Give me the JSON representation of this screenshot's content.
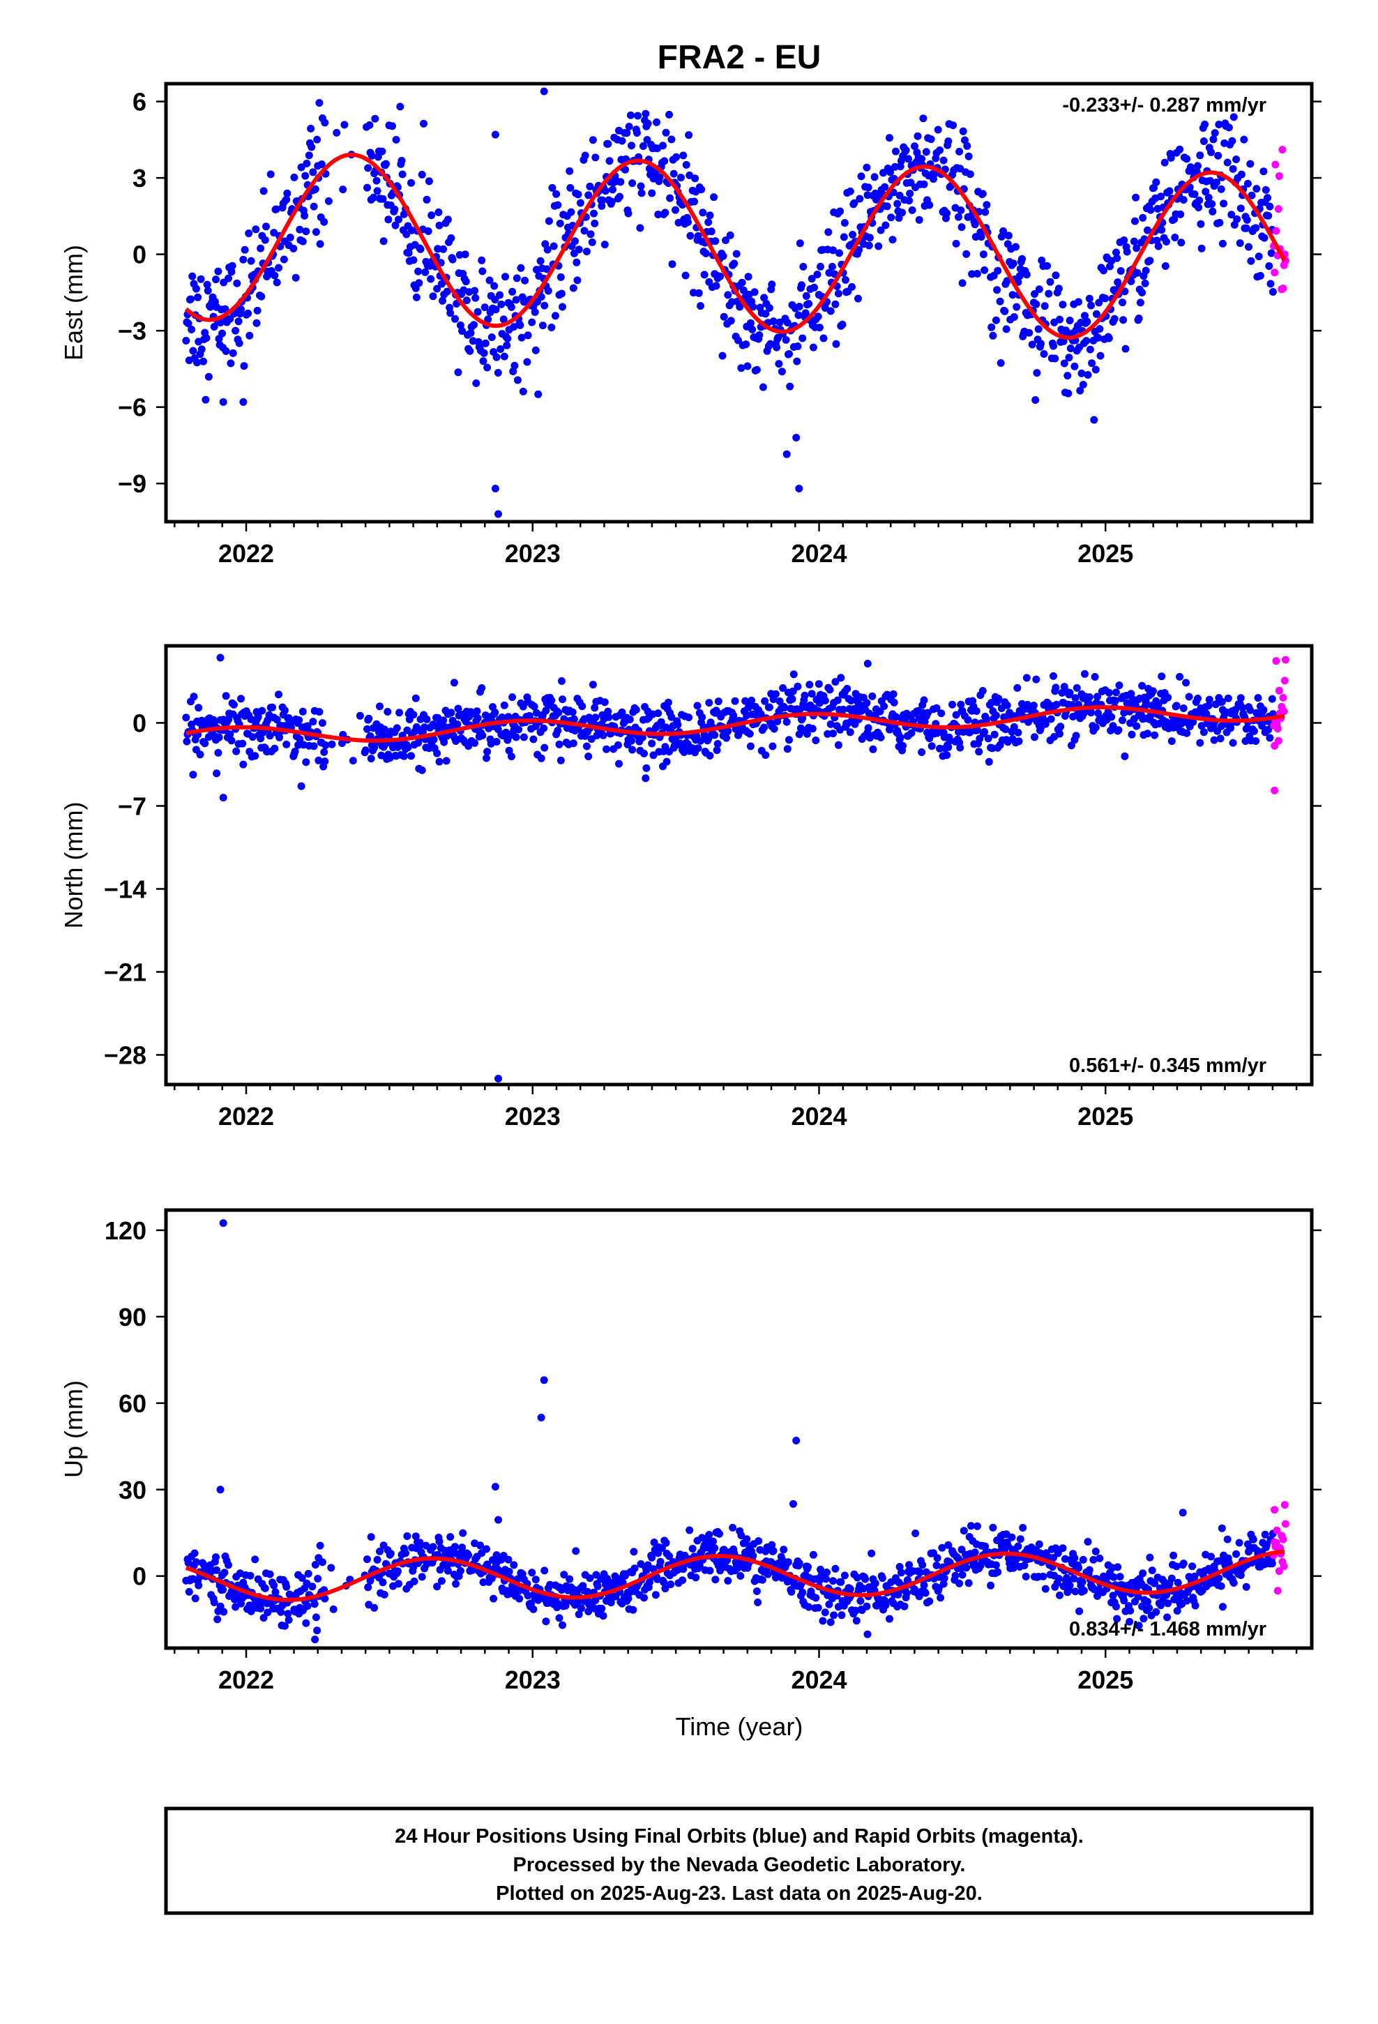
{
  "title": "FRA2 - EU",
  "xlabel": "Time (year)",
  "footer": {
    "line1": "24 Hour Positions Using Final Orbits (blue) and Rapid Orbits (magenta).",
    "line2": "Processed by the Nevada Geodetic Laboratory.",
    "line3": "Plotted on 2025-Aug-23. Last data on 2025-Aug-20."
  },
  "colors": {
    "final": "#0000ff",
    "rapid": "#ff00ff",
    "fit": "#ff0000",
    "frame": "#000000"
  },
  "chart_data": [
    {
      "type": "scatter",
      "ylabel": "East (mm)",
      "rate": "-0.233+/- 0.287 mm/yr",
      "xlim": [
        2021.72,
        2025.72
      ],
      "ylim": [
        -10.5,
        6.7
      ],
      "xticks": [
        "2022",
        "2023",
        "2024",
        "2025"
      ],
      "yticks": [
        6,
        3,
        0,
        -3,
        -6,
        -9
      ],
      "data_span": [
        2021.79,
        2025.63
      ],
      "rapid_start": 2025.585,
      "seasonal_fit": {
        "mean": 0.3,
        "slope": -0.233,
        "amplitude": 3.3,
        "peak_year_fraction": 0.37,
        "start": 2021.79,
        "end": 2025.63
      },
      "scatter": 1.2,
      "outliers": [
        [
          2022.87,
          -9.2
        ],
        [
          2022.88,
          -10.2
        ],
        [
          2023.04,
          6.4
        ],
        [
          2023.93,
          -9.2
        ],
        [
          2023.92,
          -7.2
        ],
        [
          2024.96,
          -6.5
        ],
        [
          2021.92,
          -5.8
        ],
        [
          2021.99,
          -5.8
        ],
        [
          2022.42,
          5.0
        ],
        [
          2022.87,
          4.7
        ]
      ]
    },
    {
      "type": "scatter",
      "ylabel": "North (mm)",
      "rate": "0.561+/- 0.345 mm/yr",
      "xlim": [
        2021.72,
        2025.72
      ],
      "ylim": [
        -30.5,
        6.5
      ],
      "xticks": [
        "2022",
        "2023",
        "2024",
        "2025"
      ],
      "yticks": [
        0,
        -7,
        -14,
        -21,
        -28
      ],
      "data_span": [
        2021.79,
        2025.63
      ],
      "rapid_start": 2025.585,
      "seasonal_fit": {
        "mean": -0.1,
        "slope": 0.561,
        "amplitude": 0.7,
        "peak_year_fraction": 0.97,
        "start": 2021.79,
        "end": 2025.63
      },
      "scatter": 1.2,
      "outliers": [
        [
          2022.88,
          -30.0
        ],
        [
          2021.91,
          5.5
        ],
        [
          2021.92,
          -6.3
        ],
        [
          2024.17,
          5.0
        ],
        [
          2025.59,
          -5.7
        ]
      ]
    },
    {
      "type": "scatter",
      "ylabel": "Up (mm)",
      "rate": "0.834+/- 1.468 mm/yr",
      "xlim": [
        2021.72,
        2025.72
      ],
      "ylim": [
        -25,
        127
      ],
      "xticks": [
        "2022",
        "2023",
        "2024",
        "2025"
      ],
      "yticks": [
        120,
        90,
        60,
        30,
        0
      ],
      "data_span": [
        2021.79,
        2025.63
      ],
      "rapid_start": 2025.585,
      "seasonal_fit": {
        "mean": 0.0,
        "slope": 0.834,
        "amplitude": 7.0,
        "peak_year_fraction": 0.65,
        "start": 2021.79,
        "end": 2025.63
      },
      "scatter": 4.5,
      "outliers": [
        [
          2021.92,
          122.5
        ],
        [
          2023.04,
          68.0
        ],
        [
          2023.03,
          55.0
        ],
        [
          2023.92,
          47.0
        ],
        [
          2023.91,
          25.0
        ],
        [
          2022.87,
          31.0
        ],
        [
          2022.88,
          19.5
        ],
        [
          2021.91,
          30.0
        ],
        [
          2025.27,
          22.0
        ],
        [
          2022.24,
          -22.0
        ],
        [
          2025.59,
          23.0
        ]
      ]
    }
  ]
}
